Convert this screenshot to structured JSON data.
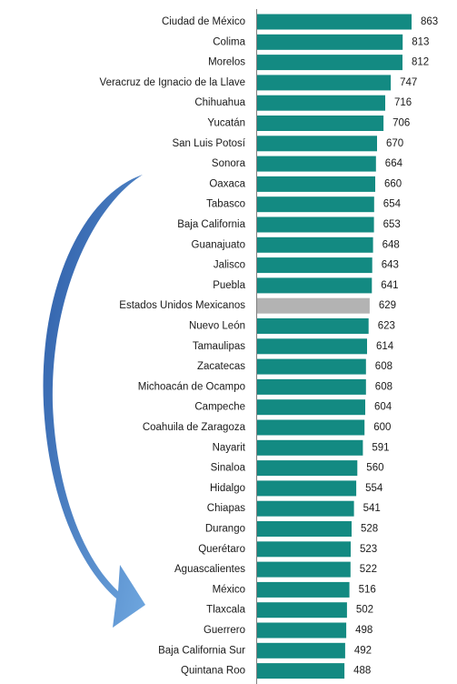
{
  "colors": {
    "bar": "#138a82",
    "highlight_bar": "#b3b3b3",
    "arrow_dark": "#2a5aa6",
    "arrow_light": "#6fa7df",
    "axis": "#7f7f7f"
  },
  "chart_data": {
    "type": "bar",
    "orientation": "horizontal",
    "title": "",
    "xlabel": "",
    "ylabel": "",
    "xlim": [
      0,
      880
    ],
    "grid": false,
    "legend": "none",
    "highlight_category": "Estados Unidos Mexicanos",
    "categories": [
      "Ciudad de México",
      "Colima",
      "Morelos",
      "Veracruz de Ignacio de la Llave",
      "Chihuahua",
      "Yucatán",
      "San Luis Potosí",
      "Sonora",
      "Oaxaca",
      "Tabasco",
      "Baja California",
      "Guanajuato",
      "Jalisco",
      "Puebla",
      "Estados Unidos Mexicanos",
      "Nuevo León",
      "Tamaulipas",
      "Zacatecas",
      "Michoacán de Ocampo",
      "Campeche",
      "Coahuila de Zaragoza",
      "Nayarit",
      "Sinaloa",
      "Hidalgo",
      "Chiapas",
      "Durango",
      "Querétaro",
      "Aguascalientes",
      "México",
      "Tlaxcala",
      "Guerrero",
      "Baja California Sur",
      "Quintana Roo"
    ],
    "values": [
      863,
      813,
      812,
      747,
      716,
      706,
      670,
      664,
      660,
      654,
      653,
      648,
      643,
      641,
      629,
      623,
      614,
      608,
      608,
      604,
      600,
      591,
      560,
      554,
      541,
      528,
      523,
      522,
      516,
      502,
      498,
      492,
      488
    ]
  }
}
